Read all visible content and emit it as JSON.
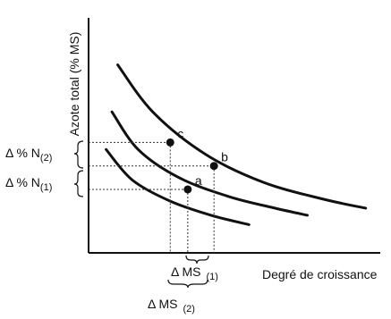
{
  "chart_data": {
    "type": "line",
    "ylabel": "Azote total (% MS)",
    "xlabel": "Degré de croissance",
    "series": [
      {
        "points": [
          [
            0.1,
            0.8
          ],
          [
            0.22,
            0.6
          ],
          [
            0.4,
            0.42
          ],
          [
            0.6,
            0.3
          ],
          [
            0.8,
            0.23
          ],
          [
            0.95,
            0.19
          ]
        ]
      },
      {
        "points": [
          [
            0.08,
            0.6
          ],
          [
            0.17,
            0.44
          ],
          [
            0.31,
            0.32
          ],
          [
            0.48,
            0.24
          ],
          [
            0.64,
            0.19
          ],
          [
            0.75,
            0.16
          ]
        ]
      },
      {
        "points": [
          [
            0.06,
            0.44
          ],
          [
            0.15,
            0.31
          ],
          [
            0.28,
            0.22
          ],
          [
            0.42,
            0.16
          ],
          [
            0.55,
            0.12
          ]
        ]
      }
    ],
    "points": [
      {
        "label": "c",
        "x": 0.28,
        "y": 0.47
      },
      {
        "label": "b",
        "x": 0.43,
        "y": 0.37
      },
      {
        "label": "a",
        "x": 0.34,
        "y": 0.27
      }
    ],
    "y_brackets": [
      {
        "text": "Δ % N",
        "sub": "(2)"
      },
      {
        "text": "Δ % N",
        "sub": "(1)"
      }
    ],
    "x_brackets": [
      {
        "text": "Δ MS",
        "sub": "(1)"
      },
      {
        "text": "Δ MS",
        "sub": "(2)"
      }
    ],
    "xlim": [
      0,
      1
    ],
    "ylim": [
      0,
      1
    ],
    "grid": false,
    "legend": "none"
  }
}
